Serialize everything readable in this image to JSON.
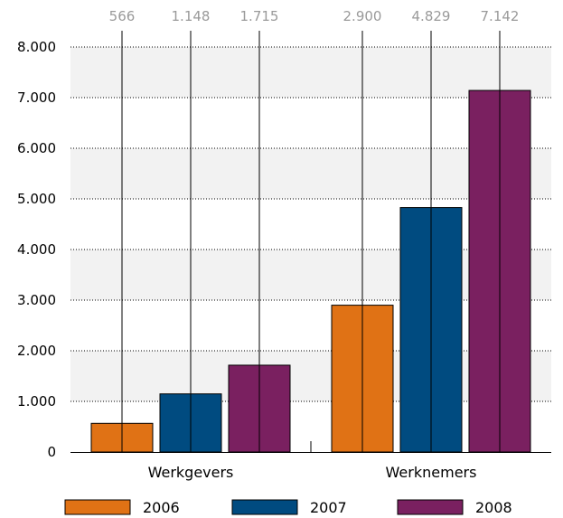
{
  "chart_data": {
    "type": "bar",
    "categories": [
      "Werkgevers",
      "Werknemers"
    ],
    "series": [
      {
        "name": "2006",
        "values": [
          566,
          2900
        ],
        "labels": [
          "566",
          "2.900"
        ],
        "color": "#e07215"
      },
      {
        "name": "2007",
        "values": [
          1148,
          4829
        ],
        "labels": [
          "1.148",
          "4.829"
        ],
        "color": "#004b80"
      },
      {
        "name": "2008",
        "values": [
          1715,
          7142
        ],
        "labels": [
          "1.715",
          "7.142"
        ],
        "color": "#7a2060"
      }
    ],
    "ylim": [
      0,
      8000
    ],
    "yticks": [
      0,
      1000,
      2000,
      3000,
      4000,
      5000,
      6000,
      7000,
      8000
    ],
    "ytick_labels": [
      "0",
      "1.000",
      "2.000",
      "3.000",
      "4.000",
      "5.000",
      "6.000",
      "7.000",
      "8.000"
    ],
    "value_labels_position": "top",
    "grid": true,
    "band_color": "#f2f2f2",
    "legend_position": "bottom"
  }
}
